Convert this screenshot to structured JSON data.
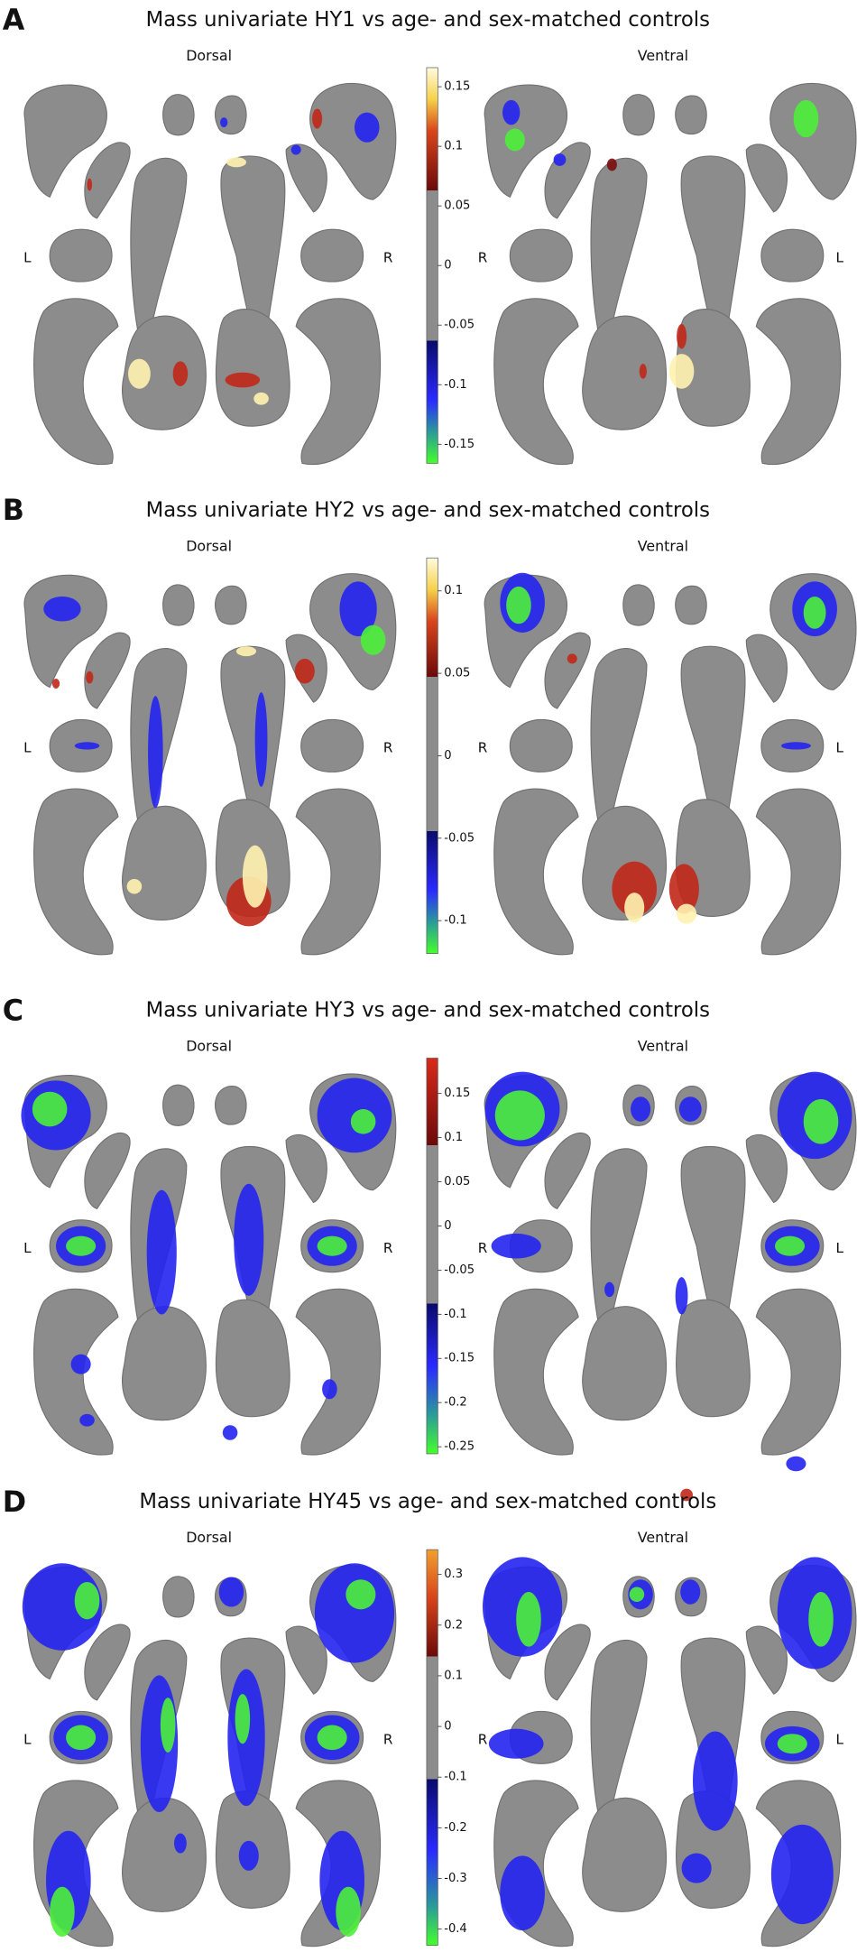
{
  "panels": [
    {
      "letter": "A",
      "title": "Mass univariate HY1 vs age- and sex-matched controls",
      "views": [
        "Dorsal",
        "Ventral"
      ],
      "side_labels": [
        "L",
        "R",
        "R",
        "L"
      ],
      "colorbar": {
        "range": [
          -0.166,
          0.166
        ],
        "ticks": [
          0.15,
          0.1,
          0.05,
          0,
          -0.05,
          -0.1,
          -0.15
        ]
      }
    },
    {
      "letter": "B",
      "title": "Mass univariate HY2 vs age- and sex-matched controls",
      "views": [
        "Dorsal",
        "Ventral"
      ],
      "side_labels": [
        "L",
        "R",
        "R",
        "L"
      ],
      "colorbar": {
        "range": [
          -0.12,
          0.12
        ],
        "ticks": [
          0.1,
          0.05,
          0,
          -0.05,
          -0.1
        ]
      }
    },
    {
      "letter": "C",
      "title": "Mass univariate HY3 vs age- and sex-matched controls",
      "views": [
        "Dorsal",
        "Ventral"
      ],
      "side_labels": [
        "L",
        "R",
        "R",
        "L"
      ],
      "colorbar": {
        "range": [
          -0.258,
          0.19
        ],
        "ticks": [
          0.15,
          0.1,
          0.05,
          0,
          -0.05,
          -0.1,
          -0.15,
          -0.2,
          -0.25
        ]
      }
    },
    {
      "letter": "D",
      "title": "Mass univariate HY45 vs age- and sex-matched controls",
      "views": [
        "Dorsal",
        "Ventral"
      ],
      "side_labels": [
        "L",
        "R",
        "R",
        "L"
      ],
      "colorbar": {
        "range": [
          -0.432,
          0.349
        ],
        "ticks": [
          0.3,
          0.2,
          0.1,
          0,
          -0.1,
          -0.2,
          -0.3,
          -0.4
        ]
      }
    }
  ]
}
